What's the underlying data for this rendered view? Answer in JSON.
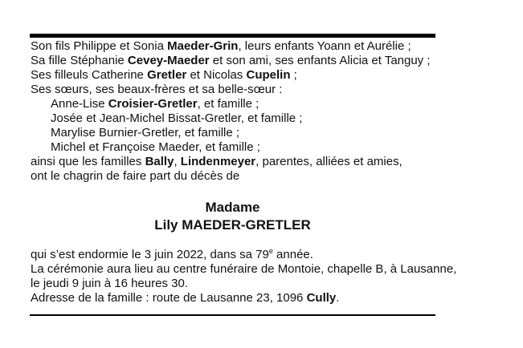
{
  "announcement": {
    "family_lines": [
      {
        "indent": false,
        "segments": [
          {
            "t": "Son fils Philippe et Sonia "
          },
          {
            "t": "Maeder-Grin",
            "b": true
          },
          {
            "t": ", leurs enfants Yoann et Aurélie ;"
          }
        ]
      },
      {
        "indent": false,
        "segments": [
          {
            "t": "Sa fille Stéphanie "
          },
          {
            "t": "Cevey-Maeder",
            "b": true
          },
          {
            "t": " et son ami, ses enfants Alicia et Tanguy ;"
          }
        ]
      },
      {
        "indent": false,
        "segments": [
          {
            "t": "Ses filleuls Catherine "
          },
          {
            "t": "Gretler",
            "b": true
          },
          {
            "t": " et Nicolas "
          },
          {
            "t": "Cupelin",
            "b": true
          },
          {
            "t": " ;"
          }
        ]
      },
      {
        "indent": false,
        "segments": [
          {
            "t": "Ses sœurs, ses beaux-frères et sa belle-sœur :"
          }
        ]
      },
      {
        "indent": true,
        "segments": [
          {
            "t": "Anne-Lise "
          },
          {
            "t": "Croisier-Gretler",
            "b": true
          },
          {
            "t": ", et famille ;"
          }
        ]
      },
      {
        "indent": true,
        "segments": [
          {
            "t": "Josée et Jean-Michel Bissat-Gretler, et famille ;"
          }
        ]
      },
      {
        "indent": true,
        "segments": [
          {
            "t": "Marylise Burnier-Gretler, et famille ;"
          }
        ]
      },
      {
        "indent": true,
        "segments": [
          {
            "t": "Michel et Françoise Maeder, et famille ;"
          }
        ]
      },
      {
        "indent": false,
        "segments": [
          {
            "t": "ainsi que les familles "
          },
          {
            "t": "Bally",
            "b": true
          },
          {
            "t": ", "
          },
          {
            "t": "Lindenmeyer",
            "b": true
          },
          {
            "t": ", parentes, alliées et amies,"
          }
        ]
      },
      {
        "indent": false,
        "segments": [
          {
            "t": "ont le chagrin de faire part du décès de"
          }
        ]
      }
    ],
    "honorific": "Madame",
    "deceased_name": "Lily MAEDER-GRETLER",
    "details": {
      "death_prefix": "qui s’est endormie le 3 juin 2022, dans sa 79",
      "death_sup": "e",
      "death_suffix": " année.",
      "ceremony_line1": "La cérémonie aura lieu au centre funéraire de Montoie, chapelle B, à Lausanne,",
      "ceremony_line2": "le jeudi 9 juin à 16 heures 30.",
      "address_prefix": "Adresse de la famille : route de Lausanne 23, 1096 ",
      "address_city": "Cully",
      "address_suffix": "."
    }
  }
}
